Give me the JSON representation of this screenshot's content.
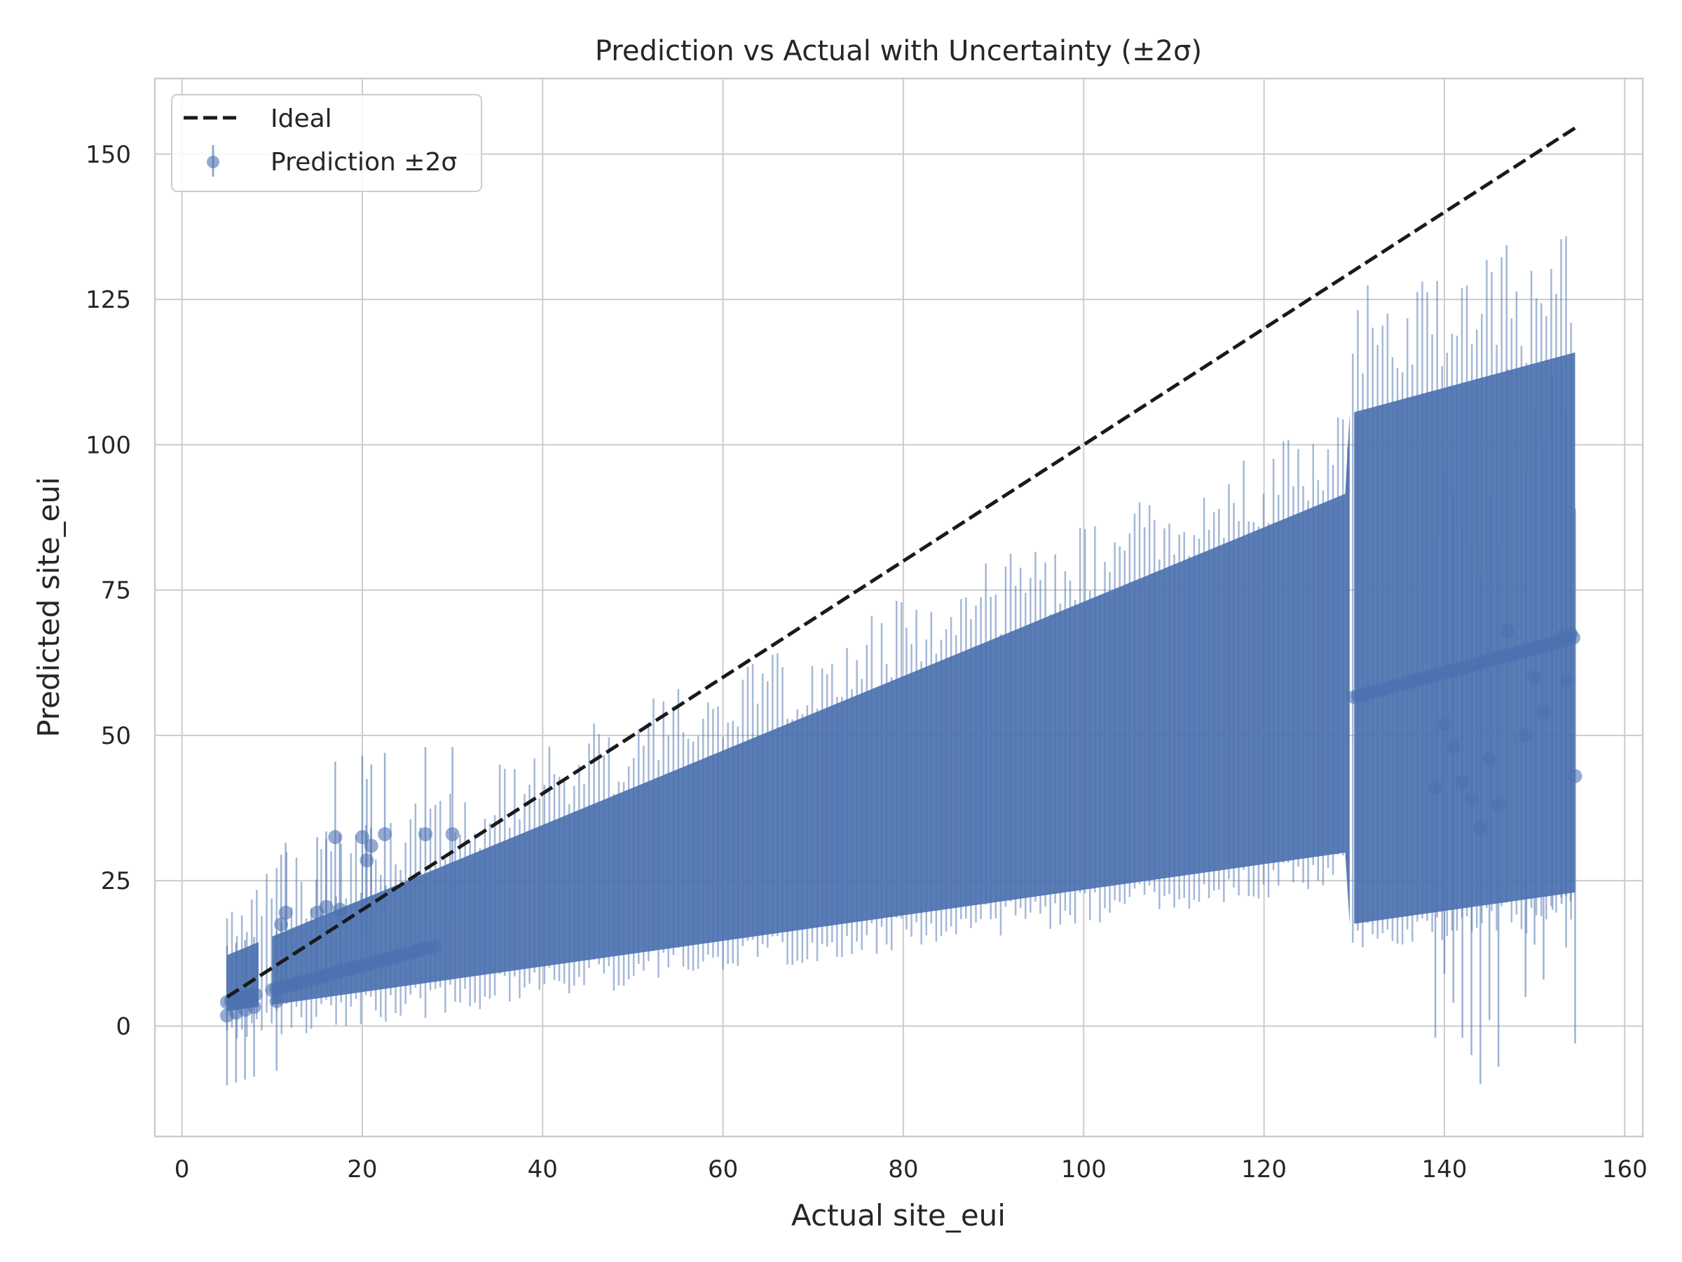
{
  "chart_data": {
    "type": "scatter",
    "title": "Prediction vs Actual with Uncertainty (±2σ)",
    "xlabel": "Actual site_eui",
    "ylabel": "Predicted site_eui",
    "xlim": [
      -3,
      162
    ],
    "ylim": [
      -19,
      163
    ],
    "x_ticks": [
      0,
      20,
      40,
      60,
      80,
      100,
      120,
      140,
      160
    ],
    "y_ticks": [
      0,
      25,
      50,
      75,
      100,
      125,
      150
    ],
    "grid": true,
    "legend_position": "top-left",
    "legend": {
      "ideal_label": "Ideal",
      "prediction_label": "Prediction ±2σ"
    },
    "series": [
      {
        "name": "Ideal",
        "kind": "line",
        "style": "dashed",
        "color": "#1a1a1a",
        "x": [
          5,
          154.5
        ],
        "y": [
          5,
          154.5
        ]
      },
      {
        "name": "Prediction ±2σ",
        "kind": "errorbar",
        "color": "#4c72b0",
        "note_trend": "predicted ≈ 0.42·actual + 2; band ±2σ",
        "x": [
          5,
          6,
          7,
          8,
          10.5,
          11,
          11.5,
          15,
          16,
          17,
          17.5,
          20,
          20.5,
          21,
          22.5,
          27,
          30,
          147,
          149,
          150,
          151,
          152,
          153,
          141,
          142,
          143,
          144,
          145,
          146,
          139,
          140,
          153.5,
          154,
          154.5
        ],
        "y": [
          1.8,
          2.3,
          2.8,
          3.3,
          4.3,
          17.5,
          19.5,
          19.5,
          20.5,
          32.5,
          20,
          32.5,
          28.5,
          31,
          33,
          33,
          33,
          68,
          50,
          60,
          54,
          66,
          67,
          48,
          42,
          39,
          34,
          46,
          38,
          41,
          52,
          59.5,
          67.5,
          43
        ],
        "err": [
          12,
          12,
          12,
          12,
          12,
          12,
          12,
          13,
          13,
          13,
          13,
          14,
          14,
          14,
          14,
          15,
          15,
          45,
          45,
          46,
          46,
          46,
          46,
          44,
          44,
          44,
          44,
          45,
          45,
          43,
          43,
          46,
          46,
          46
        ]
      }
    ]
  }
}
